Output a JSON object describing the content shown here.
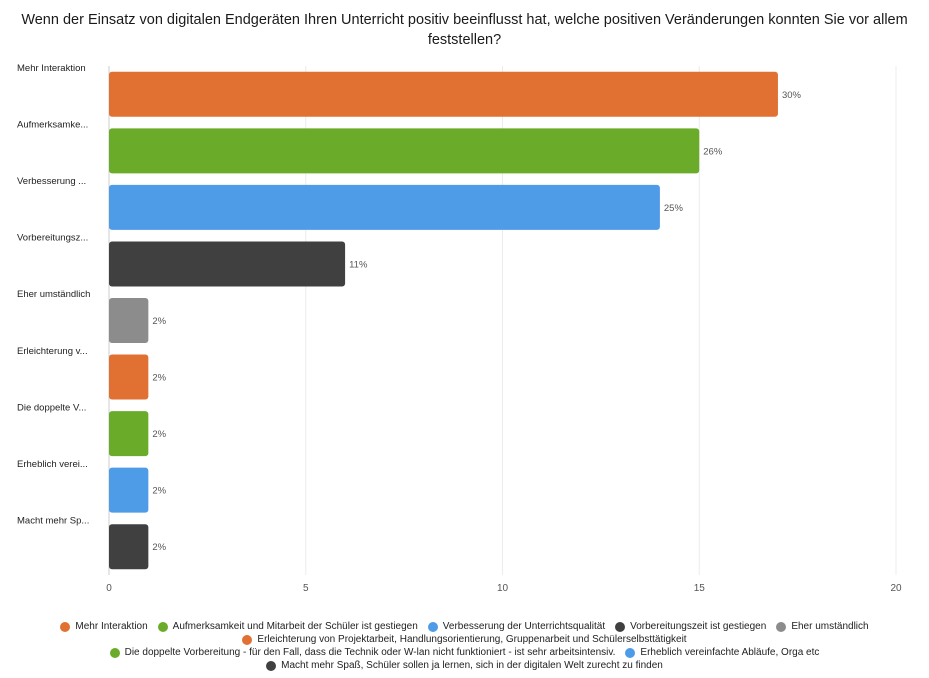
{
  "chart_data": {
    "type": "bar",
    "orientation": "horizontal",
    "title": "Wenn der Einsatz von digitalen Endgeräten Ihren Unterricht positiv beeinflusst hat, welche positiven Veränderungen konnten Sie vor allem feststellen?",
    "categories": [
      "Mehr Interaktion",
      "Aufmerksamke...",
      "Verbesserung ...",
      "Vorbereitungsz...",
      "Eher umständlich",
      "Erleichterung v...",
      "Die doppelte V...",
      "Erheblich verei...",
      "Macht mehr Sp..."
    ],
    "values": [
      17,
      15,
      14,
      6,
      1,
      1,
      1,
      1,
      1
    ],
    "labels": [
      "30%",
      "26%",
      "25%",
      "11%",
      "2%",
      "2%",
      "2%",
      "2%",
      "2%"
    ],
    "colors": [
      "#e07132",
      "#6aac29",
      "#4e9be8",
      "#404040",
      "#8c8c8c",
      "#e07132",
      "#6aac29",
      "#4e9be8",
      "#404040"
    ],
    "xlim": [
      0,
      20
    ],
    "xticks": [
      0,
      5,
      10,
      15,
      20
    ],
    "grid": true,
    "legend_position": "bottom"
  },
  "legend": [
    {
      "label": "Mehr Interaktion",
      "color": "#e07132"
    },
    {
      "label": "Aufmerksamkeit und Mitarbeit der Schüler ist gestiegen",
      "color": "#6aac29"
    },
    {
      "label": "Verbesserung der Unterrichtsqualität",
      "color": "#4e9be8"
    },
    {
      "label": "Vorbereitungszeit ist gestiegen",
      "color": "#404040"
    },
    {
      "label": "Eher umständlich",
      "color": "#8c8c8c"
    },
    {
      "label": "Erleichterung von Projektarbeit, Handlungsorientierung, Gruppenarbeit und Schülerselbsttätigkeit",
      "color": "#e07132"
    },
    {
      "label": "Die doppelte Vorbereitung - für den Fall, dass die Technik oder W-lan nicht funktioniert - ist sehr arbeitsintensiv.",
      "color": "#6aac29"
    },
    {
      "label": "Erheblich vereinfachte Abläufe, Orga etc",
      "color": "#4e9be8"
    },
    {
      "label": "Macht mehr Spaß, Schüler sollen ja lernen, sich in der digitalen Welt zurecht zu finden",
      "color": "#404040"
    }
  ]
}
